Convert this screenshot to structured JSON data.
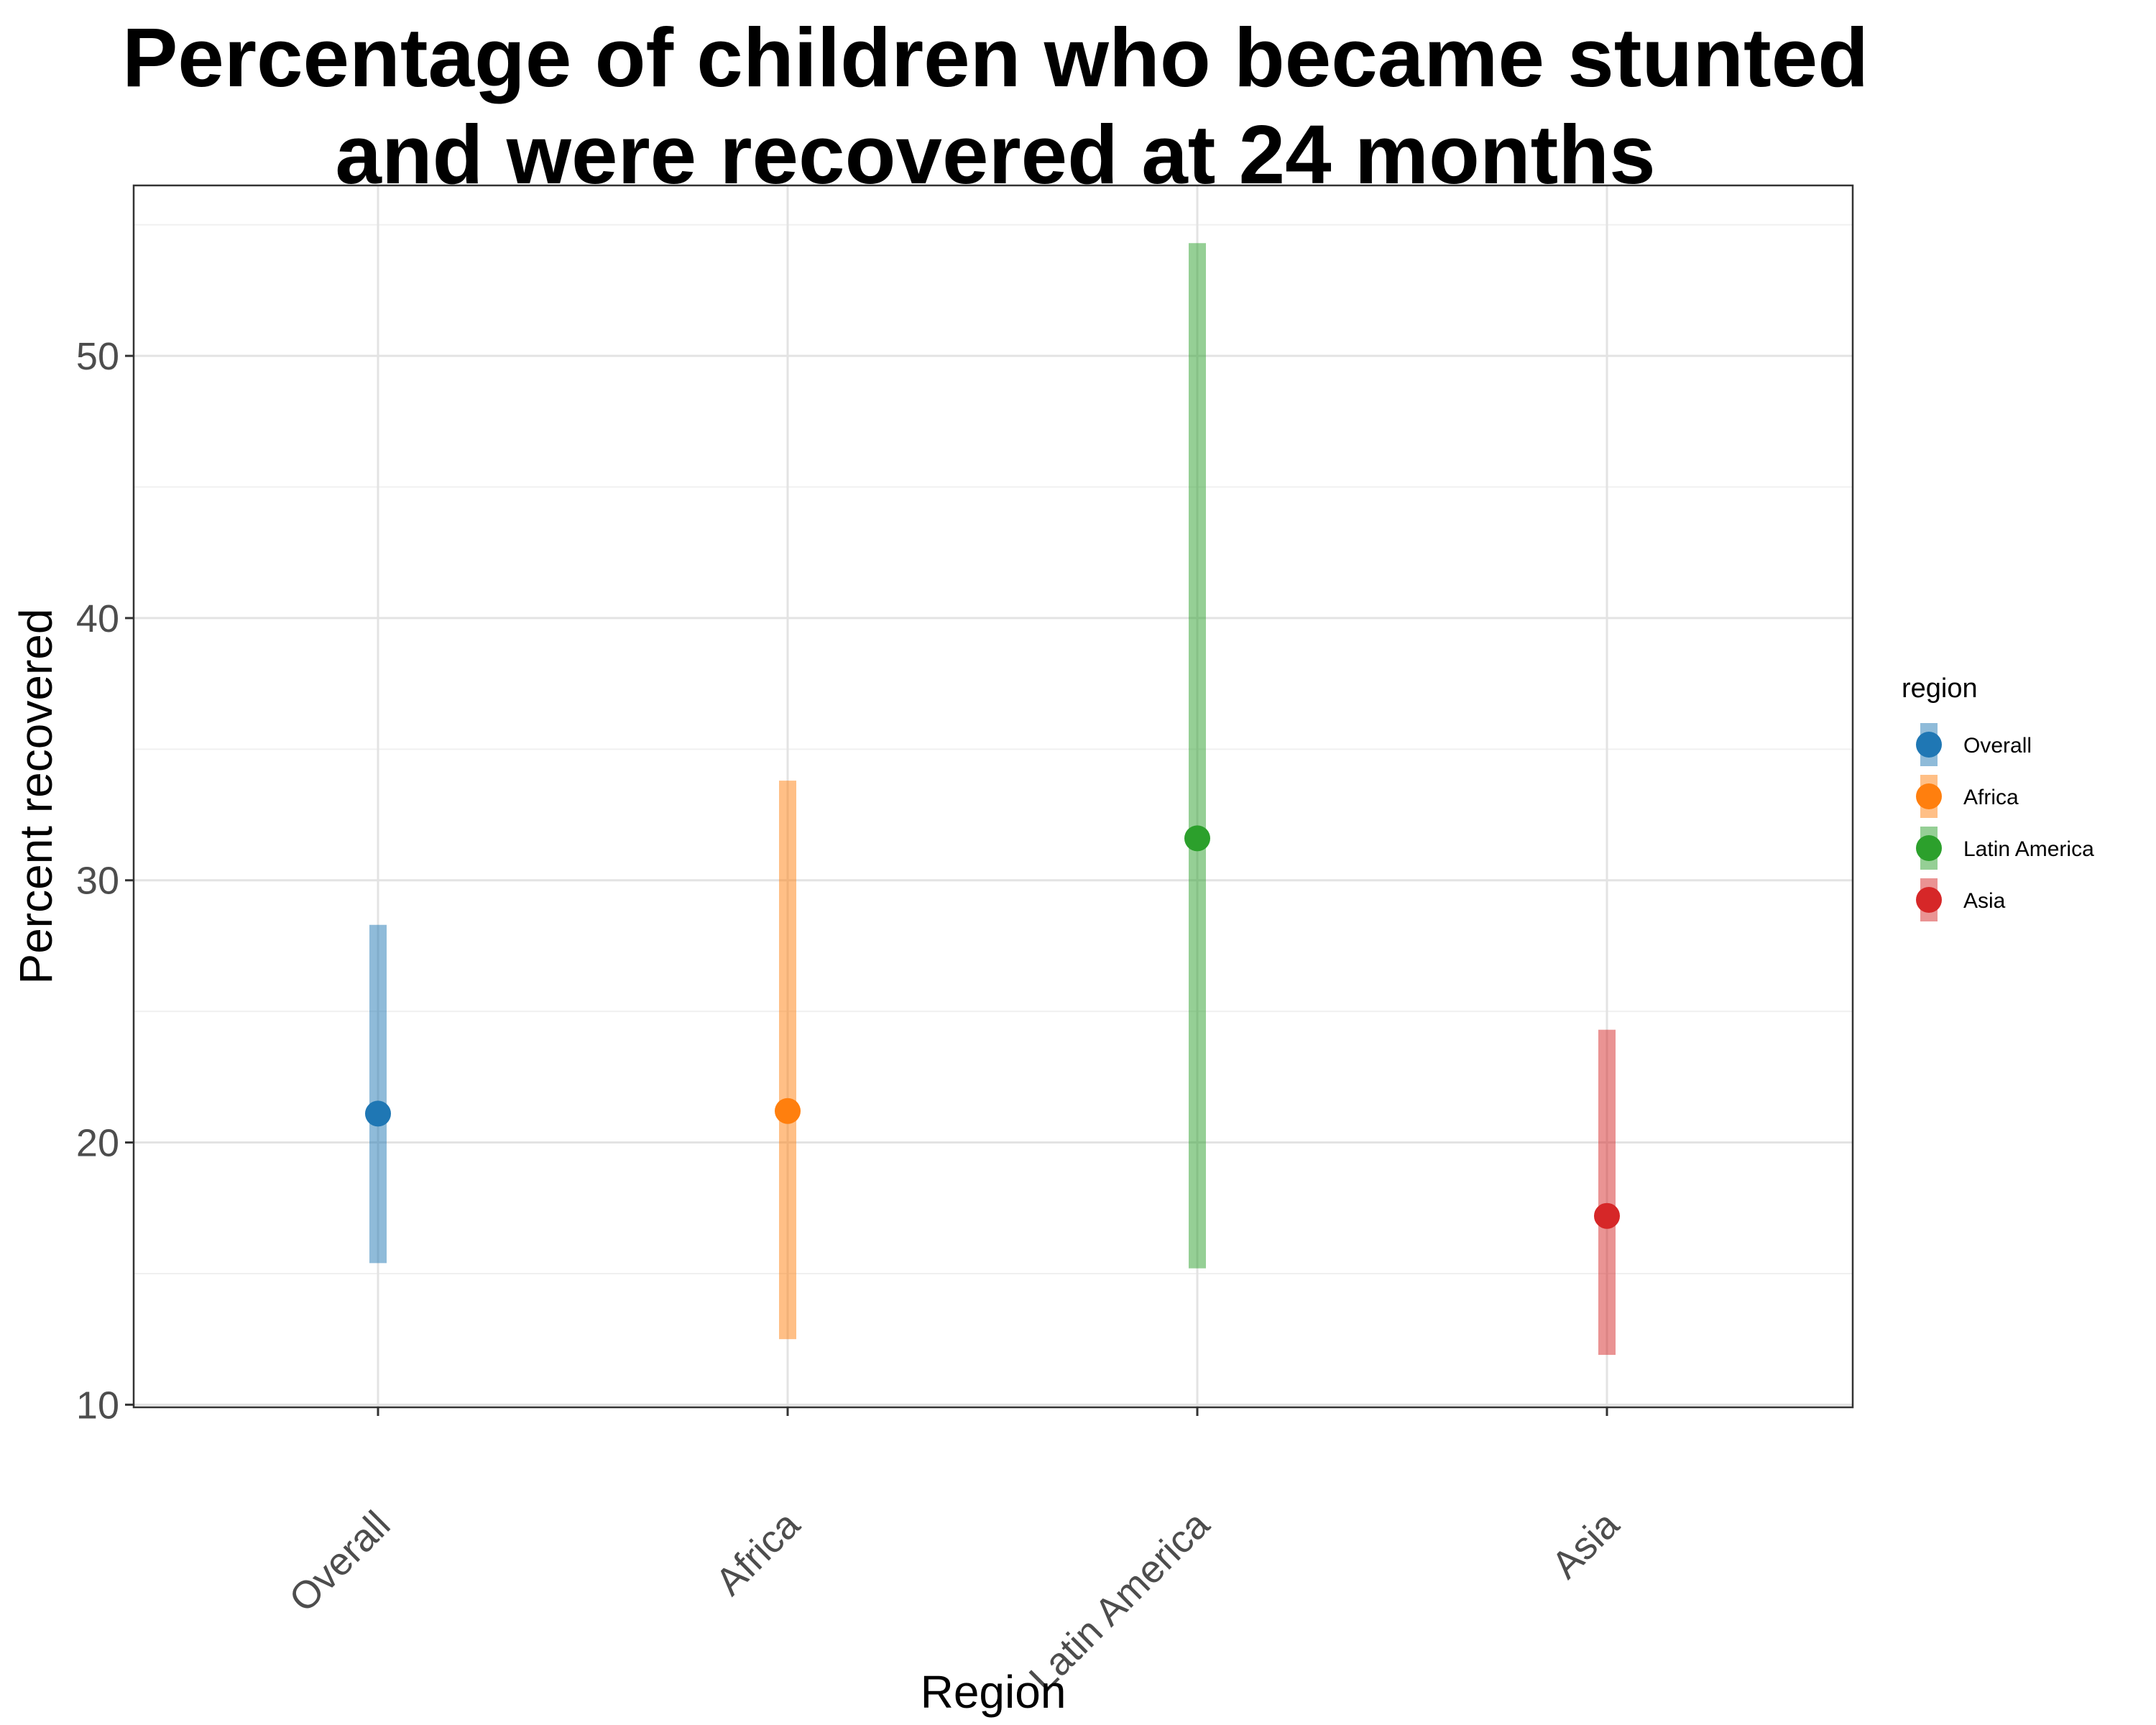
{
  "chart_data": {
    "type": "scatter",
    "title_lines": [
      "Percentage of children who became stunted",
      "and were recovered at 24 months"
    ],
    "xlabel": "Region",
    "ylabel": "Percent recovered",
    "categories": [
      "Overall",
      "Africa",
      "Latin America",
      "Asia"
    ],
    "y_ticks": [
      10,
      20,
      30,
      40,
      50
    ],
    "ylim": [
      9.9,
      56.5
    ],
    "grid": true,
    "legend": {
      "title": "region",
      "position": "right",
      "items": [
        "Overall",
        "Africa",
        "Latin America",
        "Asia"
      ]
    },
    "series": [
      {
        "category": "Overall",
        "estimate": 21.1,
        "ci_lower": 15.4,
        "ci_upper": 28.3,
        "color": "#1f77b4"
      },
      {
        "category": "Africa",
        "estimate": 21.2,
        "ci_lower": 12.5,
        "ci_upper": 33.8,
        "color": "#ff7f0e"
      },
      {
        "category": "Latin America",
        "estimate": 31.6,
        "ci_lower": 15.2,
        "ci_upper": 54.3,
        "color": "#2ca02c"
      },
      {
        "category": "Asia",
        "estimate": 17.2,
        "ci_lower": 11.9,
        "ci_upper": 24.3,
        "color": "#d62728"
      }
    ]
  }
}
